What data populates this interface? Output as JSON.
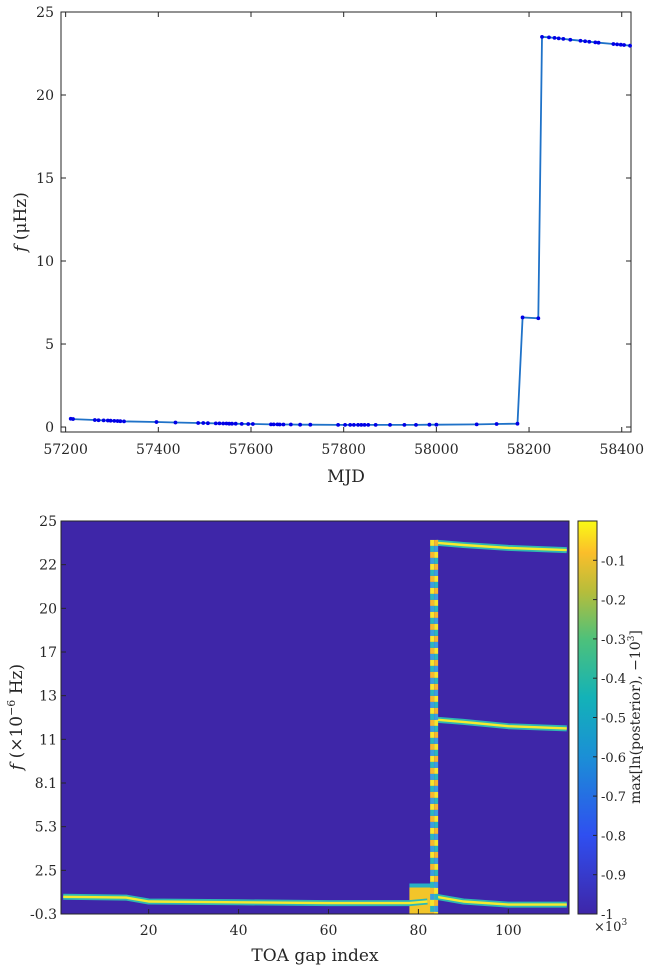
{
  "chart_data": [
    {
      "type": "line",
      "xlabel": "MJD",
      "ylabel_var": "f",
      "ylabel_unit": "(μHz)",
      "xlim": [
        57190,
        58420
      ],
      "ylim": [
        -0.3,
        25
      ],
      "xticks": [
        "57200",
        "57400",
        "57600",
        "57800",
        "58000",
        "58200",
        "58400"
      ],
      "yticks": [
        "0",
        "5",
        "10",
        "15",
        "20",
        "25"
      ],
      "grid": false,
      "series_color": "#0000e6",
      "line_color": "#1f72c8",
      "series": [
        {
          "x": [
            57211,
            57216,
            57263,
            57271,
            57282,
            57291,
            57297,
            57305,
            57312,
            57318,
            57326,
            57396,
            57437,
            57486,
            57497,
            57507,
            57524,
            57532,
            57540,
            57547,
            57553,
            57559,
            57567,
            57580,
            57594,
            57604,
            57643,
            57649,
            57657,
            57662,
            57670,
            57686,
            57706,
            57728,
            57788,
            57803,
            57814,
            57822,
            57831,
            57838,
            57845,
            57853,
            57869,
            57900,
            57931,
            57956,
            57985,
            58000,
            58087,
            58130,
            58175,
            58186,
            58220,
            58228,
            58243,
            58255,
            58264,
            58274,
            58289,
            58311,
            58321,
            58330,
            58343,
            58350,
            58382,
            58390,
            58398,
            58405,
            58418
          ],
          "y": [
            0.5,
            0.48,
            0.42,
            0.41,
            0.4,
            0.39,
            0.38,
            0.37,
            0.36,
            0.35,
            0.34,
            0.3,
            0.27,
            0.24,
            0.24,
            0.23,
            0.22,
            0.22,
            0.21,
            0.21,
            0.2,
            0.2,
            0.2,
            0.19,
            0.18,
            0.18,
            0.16,
            0.16,
            0.16,
            0.15,
            0.15,
            0.15,
            0.14,
            0.14,
            0.13,
            0.13,
            0.13,
            0.13,
            0.13,
            0.13,
            0.13,
            0.13,
            0.13,
            0.13,
            0.13,
            0.13,
            0.14,
            0.14,
            0.16,
            0.18,
            0.2,
            6.6,
            6.55,
            23.5,
            23.47,
            23.44,
            23.41,
            23.38,
            23.33,
            23.27,
            23.24,
            23.21,
            23.17,
            23.15,
            23.07,
            23.05,
            23.03,
            23.01,
            22.97
          ]
        }
      ]
    },
    {
      "type": "heatmap",
      "xlabel": "TOA gap index",
      "ylabel_var": "f",
      "ylabel_unit": "(×10",
      "ylabel_exp": "−6",
      "ylabel_unit2": " Hz)",
      "xlim": [
        0.5,
        113.5
      ],
      "xticks": [
        "20",
        "40",
        "60",
        "80",
        "100"
      ],
      "yticks": [
        "-0.3",
        "2.5",
        "5.3",
        "8.1",
        "11",
        "13",
        "17",
        "20",
        "22",
        "25"
      ],
      "colorbar": {
        "label": "max[ln(posterior), −10",
        "label_exp": "3",
        "label_end": "]",
        "ticks": [
          "-0.1",
          "-0.2",
          "-0.3",
          "-0.4",
          "-0.5",
          "-0.6",
          "-0.7",
          "-0.8",
          "-0.9",
          "-1"
        ],
        "range": [
          -1,
          0
        ],
        "multiplier": "×10",
        "multiplier_exp": "3",
        "colormap": "parula"
      },
      "tracks": [
        {
          "x": [
            1,
            15,
            20,
            40,
            60,
            78,
            82
          ],
          "y": [
            0.8,
            0.75,
            0.5,
            0.45,
            0.4,
            0.4,
            0.5
          ]
        },
        {
          "x": [
            84,
            90,
            100,
            113
          ],
          "y": [
            0.8,
            0.5,
            0.3,
            0.3
          ]
        },
        {
          "x": [
            84,
            90,
            100,
            113
          ],
          "y": [
            11.9,
            11.8,
            11.6,
            11.5
          ]
        },
        {
          "x": [
            84,
            90,
            100,
            113
          ],
          "y": [
            23.5,
            23.35,
            23.15,
            23.0
          ]
        }
      ],
      "vertical_band": {
        "x": 83.5,
        "y_range": [
          -0.3,
          23.7
        ]
      },
      "hot_block": {
        "x_range": [
          78,
          84
        ],
        "y_range": [
          -0.3,
          1.4
        ]
      }
    }
  ]
}
